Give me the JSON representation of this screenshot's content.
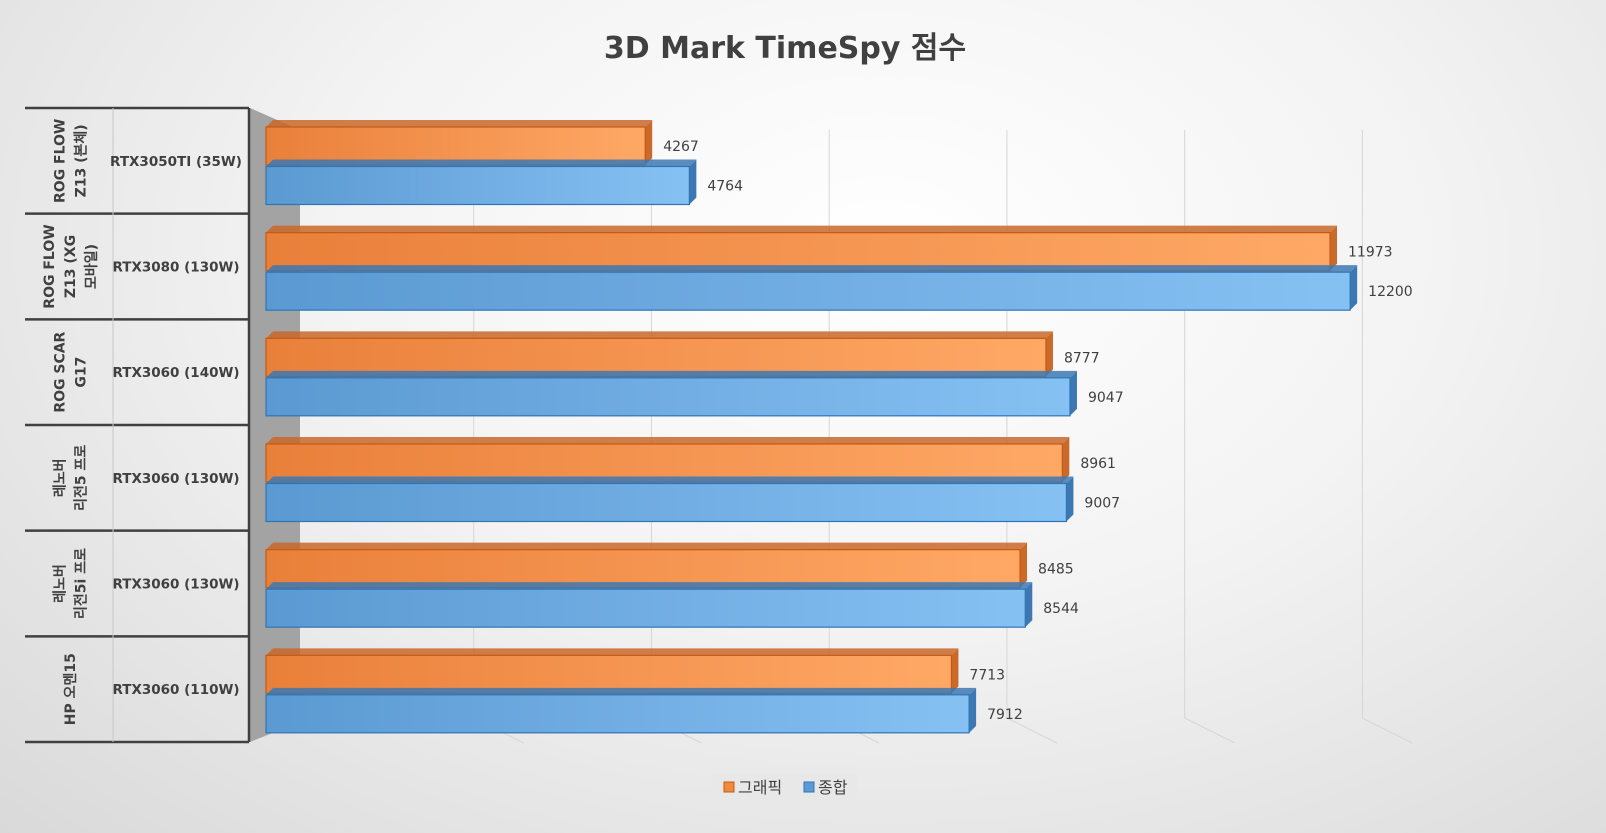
{
  "chart_data": {
    "type": "bar",
    "orientation": "horizontal",
    "style": "3d",
    "title": "3D Mark TimeSpy  점수",
    "categories": [
      {
        "group": "ROG FLOW Z13 (본체)",
        "group_lines": [
          "ROG FLOW",
          "Z13 (본체)"
        ],
        "label": "RTX3050TI (35W)"
      },
      {
        "group": "ROG FLOW Z13 (XG 모바일)",
        "group_lines": [
          "ROG FLOW",
          "Z13 (XG",
          "모바일)"
        ],
        "label": "RTX3080 (130W)"
      },
      {
        "group": "ROG SCAR G17",
        "group_lines": [
          "ROG SCAR",
          "G17"
        ],
        "label": "RTX3060 (140W)"
      },
      {
        "group": "레노버 리전5 프로",
        "group_lines": [
          "레노버",
          "리전5 프로"
        ],
        "label": "RTX3060 (130W)"
      },
      {
        "group": "레노버 리전5i 프로",
        "group_lines": [
          "레노버",
          "리전5i 프로"
        ],
        "label": "RTX3060 (130W)"
      },
      {
        "group": "HP 오멘15",
        "group_lines": [
          "HP 오멘15"
        ],
        "label": "RTX3060 (110W)"
      }
    ],
    "series": [
      {
        "name": "그래픽",
        "color": "#f08a3c",
        "values": [
          4267,
          11973,
          8777,
          8961,
          8485,
          7713
        ]
      },
      {
        "name": "종합",
        "color": "#5b9bd5",
        "values": [
          4764,
          12200,
          9047,
          9007,
          8544,
          7912
        ]
      }
    ],
    "xlim": [
      0,
      12000
    ],
    "grid": true,
    "legend": "bottom-center",
    "value_labels": true
  }
}
